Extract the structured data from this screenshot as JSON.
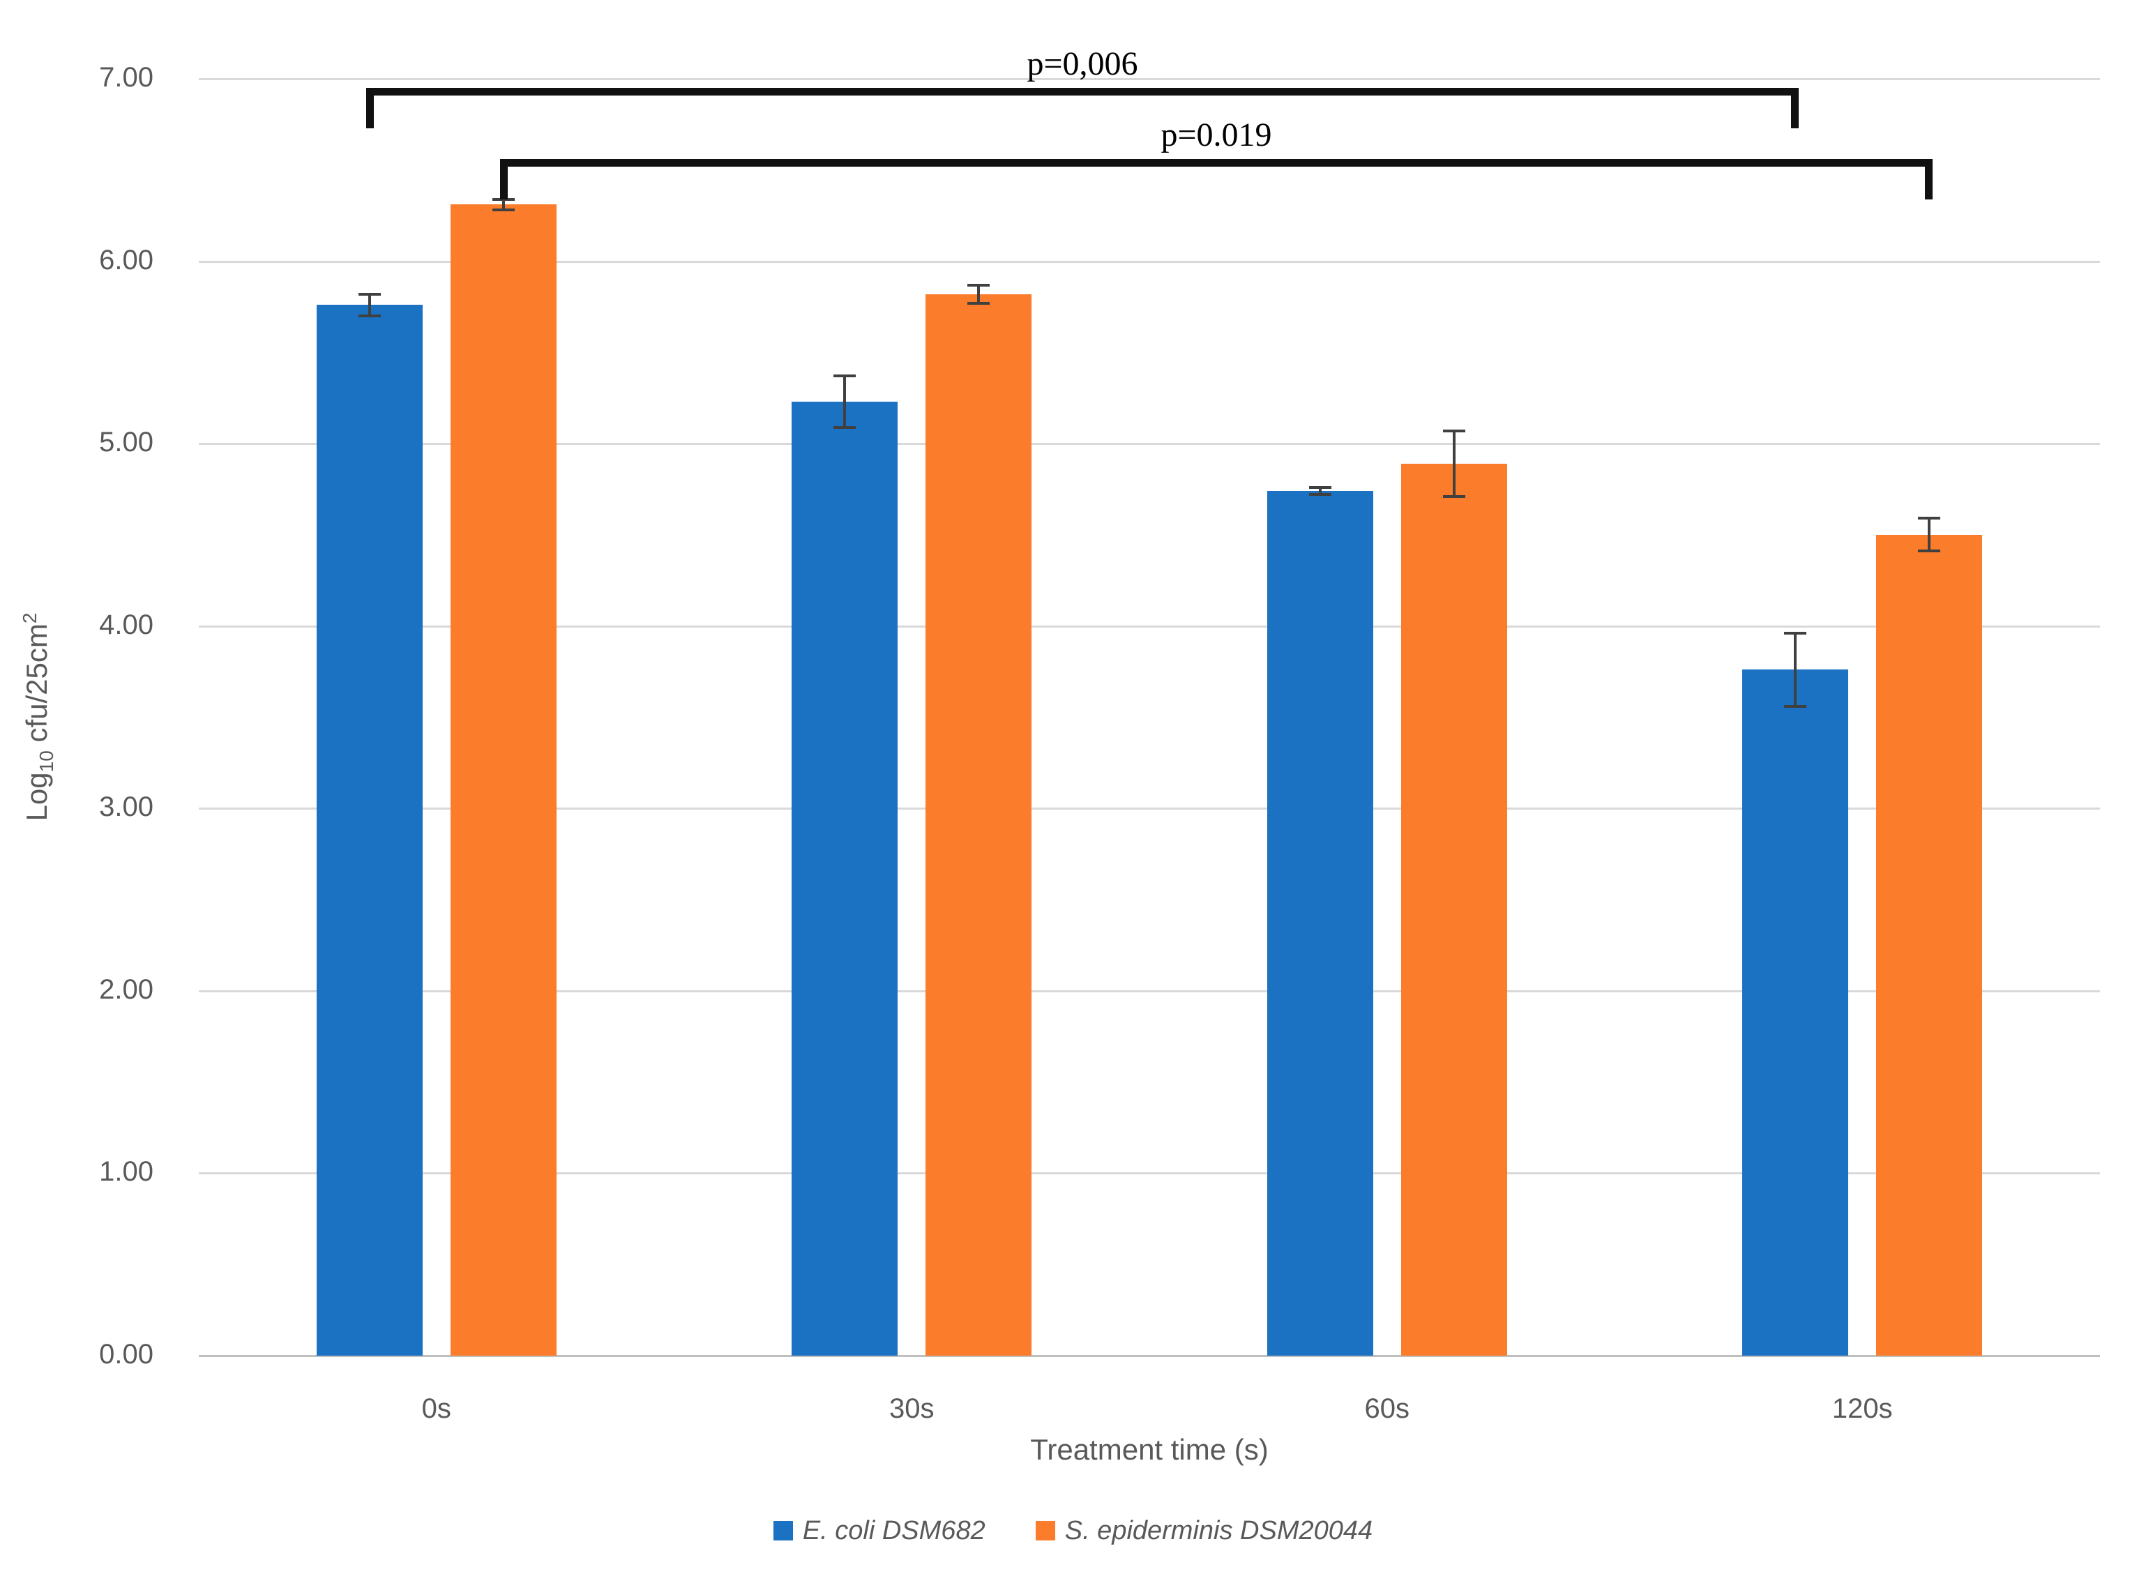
{
  "chart_data": {
    "type": "bar",
    "title": "",
    "categories": [
      "0s",
      "30s",
      "60s",
      "120s"
    ],
    "series": [
      {
        "name": "E. coli DSM682",
        "color": "#1B71C2",
        "values": [
          5.76,
          5.23,
          4.74,
          3.76
        ],
        "errors": [
          0.06,
          0.14,
          0.02,
          0.2
        ]
      },
      {
        "name": "S. epiderminis DSM20044",
        "color": "#FB7D2B",
        "values": [
          6.31,
          5.82,
          4.89,
          4.5
        ],
        "errors": [
          0.03,
          0.05,
          0.18,
          0.09
        ]
      }
    ],
    "xlabel": "Treatment time (s)",
    "ylabel": "Log10 cfu/25cm2",
    "ylabel_parts": {
      "prefix": "Log",
      "sub": "10",
      "mid": " cfu/25cm",
      "sup": "2"
    },
    "ylim": [
      0,
      7
    ],
    "y_tick_step": 1,
    "y_tick_labels": [
      "0.00",
      "1.00",
      "2.00",
      "3.00",
      "4.00",
      "5.00",
      "6.00",
      "7.00"
    ],
    "grid": "horizontal",
    "legend_position": "bottom",
    "annotations": [
      {
        "label": "p=0,006",
        "series_index": 0,
        "from_category_index": 0,
        "to_category_index": 3,
        "level": 6.95,
        "tick": 0.18
      },
      {
        "label": "p=0.019",
        "series_index": 1,
        "from_category_index": 0,
        "to_category_index": 3,
        "level": 6.56,
        "tick": 0.18
      }
    ],
    "error_bar_color": "#404040",
    "gridline_color": "#D9D9D9",
    "axis_line_color": "#BFBFBF",
    "tick_label_color": "#595959"
  }
}
